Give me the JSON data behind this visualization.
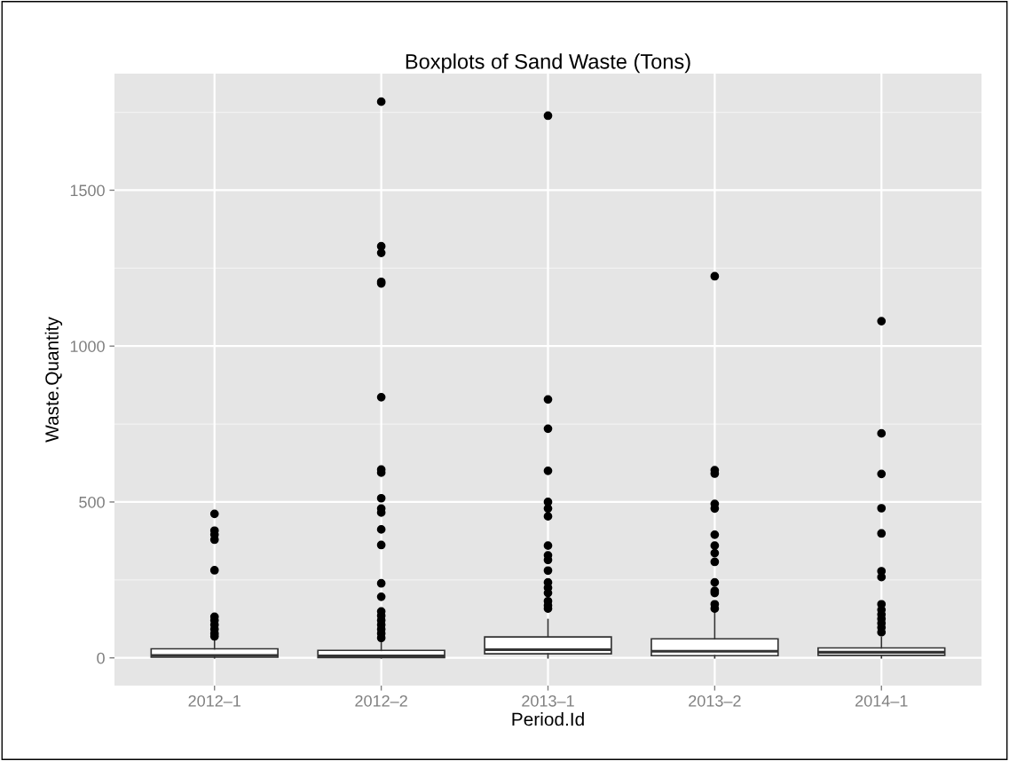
{
  "chart_data": {
    "type": "box",
    "title": "Boxplots of Sand Waste (Tons)",
    "xlabel": "Period.Id",
    "ylabel": "Waste.Quantity",
    "categories": [
      "2012–1",
      "2012–2",
      "2013–1",
      "2013–2",
      "2014–1"
    ],
    "boxes": [
      {
        "low": 0,
        "q1": 2,
        "median": 8,
        "q3": 29,
        "high": 59,
        "outliers": [
          462,
          408,
          395,
          379,
          281,
          132,
          120,
          106,
          92,
          78,
          69
        ]
      },
      {
        "low": 0,
        "q1": 1,
        "median": 6,
        "q3": 24,
        "high": 49,
        "outliers": [
          1784,
          1320,
          1299,
          1206,
          1201,
          836,
          604,
          594,
          512,
          479,
          466,
          412,
          362,
          239,
          196,
          149,
          135,
          120,
          106,
          92,
          78,
          64
        ]
      },
      {
        "low": 0,
        "q1": 13,
        "median": 26,
        "q3": 67,
        "high": 123,
        "outliers": [
          1739,
          829,
          735,
          600,
          500,
          479,
          454,
          360,
          329,
          314,
          280,
          242,
          225,
          208,
          182,
          168,
          158
        ]
      },
      {
        "low": 0,
        "q1": 7,
        "median": 21,
        "q3": 61,
        "high": 147,
        "outliers": [
          1224,
          602,
          591,
          494,
          479,
          395,
          360,
          336,
          308,
          242,
          215,
          208,
          172,
          158
        ]
      },
      {
        "low": 0,
        "q1": 8,
        "median": 18,
        "q3": 32,
        "high": 65,
        "outliers": [
          1080,
          720,
          590,
          480,
          399,
          278,
          259,
          172,
          154,
          139,
          125,
          111,
          97,
          82
        ]
      }
    ],
    "color": "#ffffff",
    "ylim": [
      -89,
      1874
    ],
    "yticks": [
      0,
      500,
      1000,
      1500
    ],
    "grid": true
  }
}
